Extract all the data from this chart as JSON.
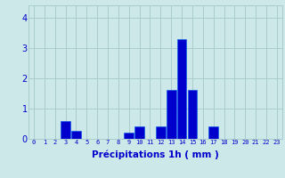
{
  "hours": [
    0,
    1,
    2,
    3,
    4,
    5,
    6,
    7,
    8,
    9,
    10,
    11,
    12,
    13,
    14,
    15,
    16,
    17,
    18,
    19,
    20,
    21,
    22,
    23
  ],
  "values": [
    0,
    0,
    0,
    0.6,
    0.25,
    0,
    0,
    0,
    0,
    0.22,
    0.4,
    0,
    0.4,
    1.6,
    3.3,
    1.6,
    0,
    0.4,
    0,
    0,
    0,
    0,
    0,
    0
  ],
  "bar_color": "#0000cc",
  "bar_edge_color": "#0055ee",
  "background_color": "#cce8e8",
  "grid_color": "#aacccc",
  "xlabel": "Précipitations 1h ( mm )",
  "xlabel_color": "#0000cc",
  "tick_color": "#0000cc",
  "ylim": [
    0,
    4.4
  ],
  "yticks": [
    0,
    1,
    2,
    3,
    4
  ],
  "xlim": [
    -0.5,
    23.5
  ]
}
